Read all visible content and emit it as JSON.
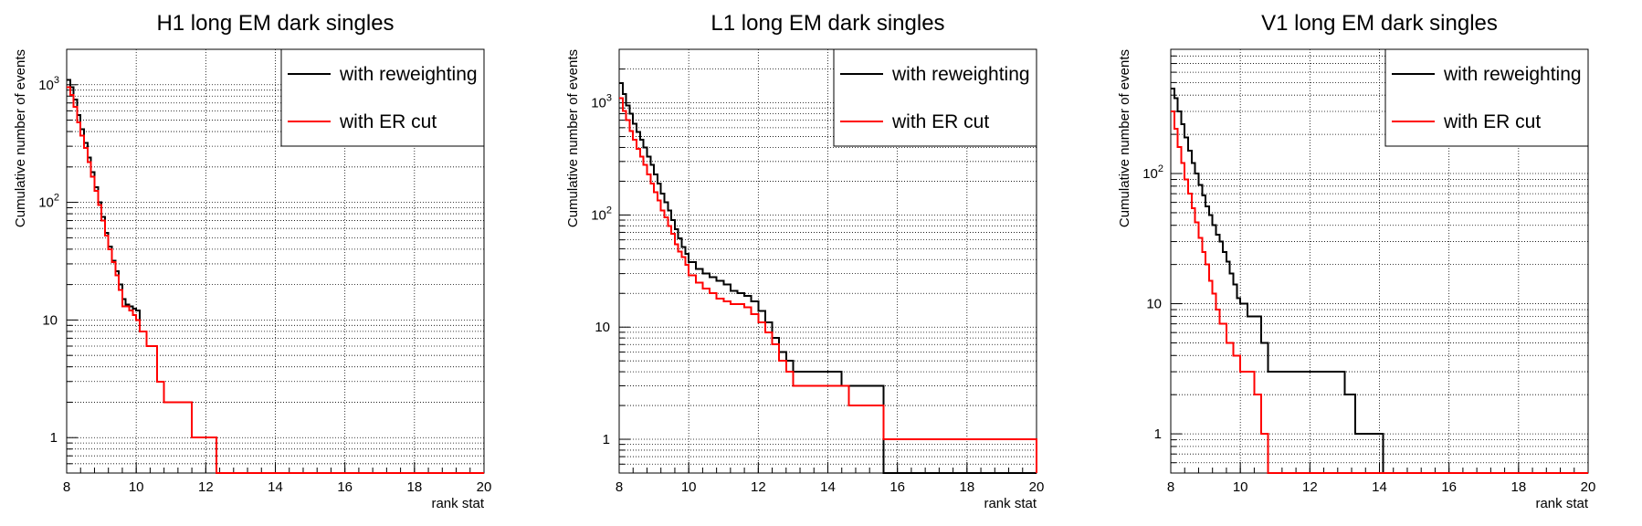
{
  "chart_data": [
    {
      "type": "line",
      "title": "H1 long EM dark singles",
      "xlabel": "rank stat",
      "ylabel": "Cumulative number of events",
      "xlim": [
        8,
        20
      ],
      "ylim": [
        0.5,
        2000
      ],
      "yscale": "log",
      "x_ticks": [
        8,
        10,
        12,
        14,
        16,
        18,
        20
      ],
      "y_ticks": [
        {
          "v": 1000,
          "base": "10",
          "exp": "3"
        },
        {
          "v": 100,
          "base": "10",
          "exp": "2"
        },
        {
          "v": 10,
          "label": "10"
        },
        {
          "v": 1,
          "label": "1"
        }
      ],
      "grid": true,
      "legend_position": "top-right",
      "series": [
        {
          "name": "with reweighting",
          "color": "#000000",
          "x": [
            8.0,
            8.1,
            8.2,
            8.3,
            8.4,
            8.5,
            8.6,
            8.7,
            8.8,
            8.9,
            9.0,
            9.1,
            9.2,
            9.3,
            9.4,
            9.5,
            9.6,
            9.7,
            9.8,
            9.9,
            10.0,
            10.1,
            10.2,
            10.3,
            10.4,
            10.5,
            10.6,
            10.8,
            11.6,
            12.3,
            20.0
          ],
          "y": [
            1100,
            950,
            750,
            550,
            420,
            320,
            240,
            180,
            135,
            100,
            75,
            55,
            42,
            32,
            26,
            20,
            15,
            13.5,
            13,
            12.5,
            12,
            8,
            8,
            6,
            6,
            6,
            3,
            2,
            1,
            0.5,
            0.5
          ]
        },
        {
          "name": "with ER cut",
          "color": "#ff0000",
          "x": [
            8.0,
            8.1,
            8.2,
            8.3,
            8.4,
            8.5,
            8.6,
            8.7,
            8.8,
            8.9,
            9.0,
            9.1,
            9.2,
            9.3,
            9.4,
            9.5,
            9.6,
            9.7,
            9.8,
            9.9,
            10.0,
            10.1,
            10.2,
            10.3,
            10.4,
            10.5,
            10.6,
            10.8,
            11.6,
            12.3,
            20.0
          ],
          "y": [
            950,
            820,
            650,
            480,
            370,
            290,
            220,
            165,
            125,
            95,
            70,
            52,
            40,
            31,
            24,
            18,
            13,
            13,
            12,
            11,
            10,
            8,
            8,
            6,
            6,
            6,
            3,
            2,
            1,
            0.5,
            0.5
          ]
        }
      ]
    },
    {
      "type": "line",
      "title": "L1 long EM dark singles",
      "xlabel": "rank stat",
      "ylabel": "Cumulative number of events",
      "xlim": [
        8,
        20
      ],
      "ylim": [
        0.5,
        3000
      ],
      "yscale": "log",
      "x_ticks": [
        8,
        10,
        12,
        14,
        16,
        18,
        20
      ],
      "y_ticks": [
        {
          "v": 1000,
          "base": "10",
          "exp": "3"
        },
        {
          "v": 100,
          "base": "10",
          "exp": "2"
        },
        {
          "v": 10,
          "label": "10"
        },
        {
          "v": 1,
          "label": "1"
        }
      ],
      "grid": true,
      "legend_position": "top-right",
      "series": [
        {
          "name": "with reweighting",
          "color": "#000000",
          "x": [
            8.0,
            8.1,
            8.2,
            8.3,
            8.4,
            8.5,
            8.6,
            8.7,
            8.8,
            8.9,
            9.0,
            9.1,
            9.2,
            9.3,
            9.4,
            9.5,
            9.6,
            9.7,
            9.8,
            9.9,
            10.0,
            10.2,
            10.4,
            10.6,
            10.8,
            11.0,
            11.2,
            11.4,
            11.6,
            11.8,
            12.0,
            12.2,
            12.4,
            12.6,
            12.8,
            13.0,
            14.4,
            14.6,
            15.6,
            20.0
          ],
          "y": [
            1500,
            1200,
            950,
            800,
            650,
            550,
            470,
            400,
            330,
            280,
            230,
            190,
            155,
            130,
            110,
            90,
            75,
            62,
            52,
            45,
            38,
            33,
            30,
            28,
            26,
            24,
            21,
            20,
            19,
            17,
            14,
            11,
            8,
            6,
            5,
            4,
            3,
            3,
            0.5,
            0.5
          ]
        },
        {
          "name": "with ER cut",
          "color": "#ff0000",
          "x": [
            8.0,
            8.1,
            8.2,
            8.3,
            8.4,
            8.5,
            8.6,
            8.7,
            8.8,
            8.9,
            9.0,
            9.1,
            9.2,
            9.3,
            9.4,
            9.5,
            9.6,
            9.7,
            9.8,
            9.9,
            10.0,
            10.2,
            10.4,
            10.6,
            10.8,
            11.0,
            11.2,
            11.4,
            11.6,
            11.8,
            12.0,
            12.2,
            12.4,
            12.6,
            12.8,
            13.0,
            14.4,
            14.6,
            15.6,
            20.0
          ],
          "y": [
            1100,
            850,
            700,
            560,
            470,
            390,
            330,
            280,
            230,
            190,
            160,
            135,
            110,
            95,
            80,
            68,
            55,
            47,
            42,
            36,
            29,
            25,
            22,
            20,
            18,
            17,
            16,
            16,
            15,
            13,
            11,
            9,
            7,
            5,
            4,
            3,
            3,
            2,
            1,
            0.5
          ]
        }
      ]
    },
    {
      "type": "line",
      "title": "V1 long EM dark singles",
      "xlabel": "rank stat",
      "ylabel": "Cumulative number of events",
      "xlim": [
        8,
        20
      ],
      "ylim": [
        0.5,
        900
      ],
      "yscale": "log",
      "x_ticks": [
        8,
        10,
        12,
        14,
        16,
        18,
        20
      ],
      "y_ticks": [
        {
          "v": 100,
          "base": "10",
          "exp": "2"
        },
        {
          "v": 10,
          "label": "10"
        },
        {
          "v": 1,
          "label": "1"
        }
      ],
      "grid": true,
      "legend_position": "top-right",
      "series": [
        {
          "name": "with reweighting",
          "color": "#000000",
          "x": [
            8.0,
            8.1,
            8.2,
            8.3,
            8.4,
            8.5,
            8.6,
            8.7,
            8.8,
            8.9,
            9.0,
            9.1,
            9.2,
            9.3,
            9.4,
            9.5,
            9.6,
            9.7,
            9.8,
            9.9,
            10.0,
            10.2,
            10.4,
            10.6,
            10.8,
            13.0,
            13.3,
            14.1,
            20.0
          ],
          "y": [
            450,
            380,
            300,
            240,
            190,
            150,
            120,
            100,
            82,
            68,
            56,
            48,
            40,
            34,
            30,
            25,
            21,
            17,
            14,
            11,
            10,
            8,
            8,
            5,
            3,
            2,
            1,
            0.5,
            0.5
          ]
        },
        {
          "name": "with ER cut",
          "color": "#ff0000",
          "x": [
            8.0,
            8.1,
            8.2,
            8.3,
            8.4,
            8.5,
            8.6,
            8.7,
            8.8,
            8.9,
            9.0,
            9.1,
            9.2,
            9.3,
            9.4,
            9.6,
            9.8,
            10.0,
            10.2,
            10.4,
            10.6,
            10.8,
            20.0
          ],
          "y": [
            300,
            220,
            160,
            120,
            90,
            70,
            54,
            42,
            32,
            25,
            20,
            15,
            12,
            9,
            7,
            5,
            4,
            3,
            3,
            2,
            1,
            0.5,
            0.5
          ]
        }
      ]
    }
  ]
}
